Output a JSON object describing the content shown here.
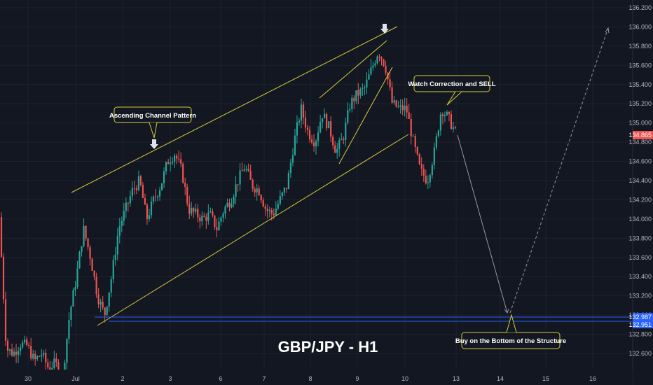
{
  "chart_data": {
    "type": "candlestick",
    "title": "GBP/JPY -  H1",
    "ylim": [
      132.4,
      136.2
    ],
    "y_ticks": [
      "132.600",
      "132.800",
      "133.000",
      "133.200",
      "133.400",
      "133.600",
      "133.800",
      "134.000",
      "134.200",
      "134.400",
      "134.600",
      "134.800",
      "135.000",
      "135.200",
      "135.400",
      "135.600",
      "135.800",
      "136.000",
      "136.200"
    ],
    "x_ticks": [
      "30",
      "Jul",
      "2",
      "3",
      "6",
      "7",
      "8",
      "9",
      "10",
      "13",
      "14",
      "15",
      "16"
    ],
    "price_labels": {
      "current": {
        "value": "134.865",
        "color": "#ef5350"
      },
      "level_1": {
        "value": "132.987",
        "color": "#2962ff"
      },
      "level_2": {
        "value": "132.951",
        "color": "#2962ff"
      }
    },
    "up_color": "#26a69a",
    "down_color": "#ef5350",
    "annotations": [
      {
        "text": "Ascending Channel Pattern"
      },
      {
        "text": "Watch Correction and SELL"
      },
      {
        "text": "Buy on the Bottom of the Structure"
      }
    ],
    "trend_path": [
      134.02,
      132.65,
      132.6,
      132.7,
      132.68,
      132.52,
      132.6,
      132.45,
      132.5,
      132.35,
      133.0,
      133.4,
      133.9,
      133.6,
      133.2,
      133.0,
      133.4,
      133.9,
      134.1,
      134.3,
      134.4,
      134.0,
      134.2,
      134.35,
      134.6,
      134.68,
      134.5,
      134.1,
      134.05,
      134.0,
      134.05,
      133.9,
      134.1,
      134.2,
      134.4,
      134.55,
      134.35,
      134.3,
      134.1,
      134.05,
      134.2,
      134.35,
      134.8,
      135.15,
      134.9,
      134.8,
      135.1,
      134.95,
      134.7,
      134.85,
      135.2,
      135.3,
      135.35,
      135.55,
      135.75,
      135.6,
      135.2,
      135.15,
      135.15,
      134.8,
      134.5,
      134.4,
      134.7,
      135.15,
      135.05,
      134.9
    ],
    "projection": [
      134.9,
      132.95,
      136.0
    ]
  }
}
